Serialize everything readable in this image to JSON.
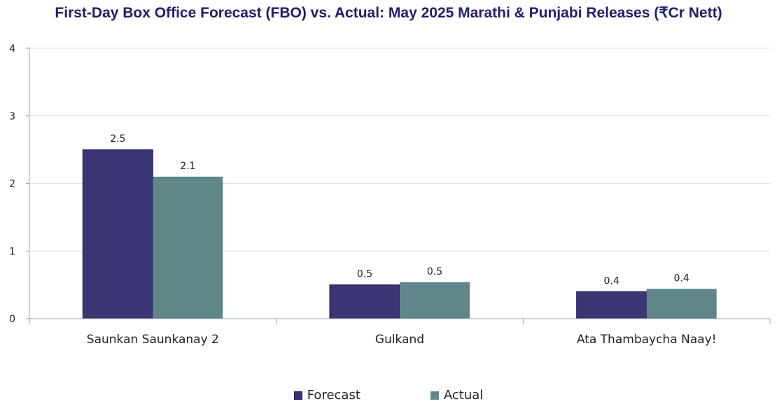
{
  "chart_data": {
    "type": "bar",
    "title": "First-Day Box Office Forecast (FBO) vs. Actual: May 2025 Marathi & Punjabi Releases (₹Cr Nett)",
    "xlabel": "",
    "ylabel": "",
    "ylim": [
      0,
      4
    ],
    "yticks": [
      "0",
      "1",
      "2",
      "3",
      "4"
    ],
    "grid": true,
    "legend_position": "bottom",
    "categories": [
      "Saunkan Saunkanay 2",
      "Gulkand",
      "Ata Thambaycha Naay!"
    ],
    "series": [
      {
        "name": "Forecast",
        "color": "#3a3573",
        "values": [
          2.5,
          0.5,
          0.4
        ],
        "labels": [
          "2.5",
          "0.5",
          "0.4"
        ]
      },
      {
        "name": "Actual",
        "color": "#5f8689",
        "values": [
          2.1,
          0.54,
          0.44
        ],
        "labels": [
          "2.1",
          "0.5",
          "0.4"
        ]
      }
    ]
  }
}
